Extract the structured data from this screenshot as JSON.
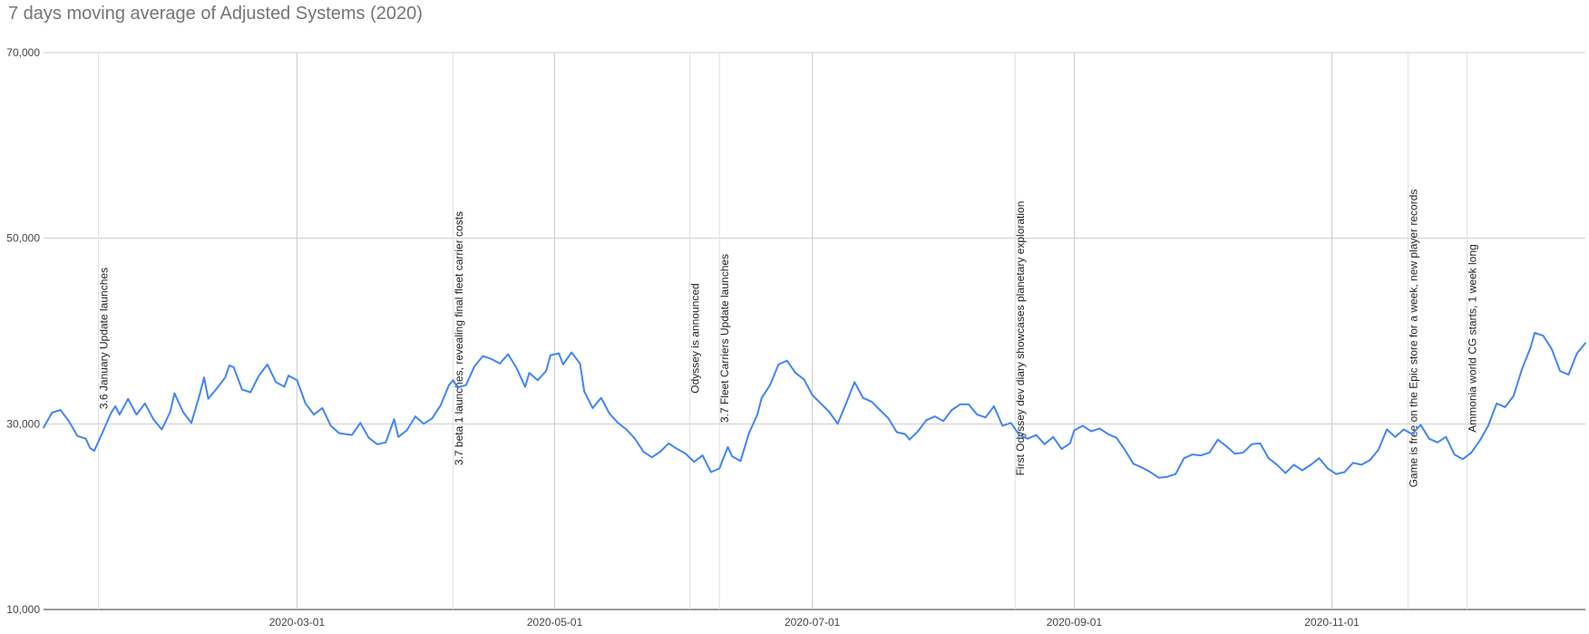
{
  "chart_data": {
    "type": "line",
    "title": "7 days moving average of Adjusted Systems (2020)",
    "xlabel": "",
    "ylabel": "",
    "x_range": [
      "2020-01-01",
      "2020-12-31"
    ],
    "ylim": [
      10000,
      70000
    ],
    "y_ticks": [
      {
        "value": 10000,
        "label": "10,000"
      },
      {
        "value": 30000,
        "label": "30,000"
      },
      {
        "value": 50000,
        "label": "50,000"
      },
      {
        "value": 70000,
        "label": "70,000"
      }
    ],
    "x_ticks": [
      {
        "date": "2020-03-01",
        "label": "2020-03-01"
      },
      {
        "date": "2020-05-01",
        "label": "2020-05-01"
      },
      {
        "date": "2020-07-01",
        "label": "2020-07-01"
      },
      {
        "date": "2020-09-01",
        "label": "2020-09-01"
      },
      {
        "date": "2020-11-01",
        "label": "2020-11-01"
      }
    ],
    "grid": true,
    "line_color": "#4285f4",
    "annotations": [
      {
        "date": "2020-01-14",
        "text": "3.6 January Update launches"
      },
      {
        "date": "2020-04-07",
        "text": "3.7 beta 1 launches, revealing final fleet carrier costs"
      },
      {
        "date": "2020-06-02",
        "text": "Odyssey is announced"
      },
      {
        "date": "2020-06-09",
        "text": "3.7 Fleet Carriers Update launches"
      },
      {
        "date": "2020-08-18",
        "text": "First Odyssey dev diary showcases planetary exploration"
      },
      {
        "date": "2020-11-19",
        "text": "Game is free on the Epic store for a week, new player records"
      },
      {
        "date": "2020-12-03",
        "text": "Ammonia world CG starts, 1 week long"
      }
    ],
    "series": [
      {
        "values": [
          [
            "2020-01-01",
            29600
          ],
          [
            "2020-01-03",
            31200
          ],
          [
            "2020-01-05",
            31500
          ],
          [
            "2020-01-07",
            30300
          ],
          [
            "2020-01-09",
            28700
          ],
          [
            "2020-01-11",
            28400
          ],
          [
            "2020-01-12",
            27400
          ],
          [
            "2020-01-13",
            27100
          ],
          [
            "2020-01-15",
            29100
          ],
          [
            "2020-01-17",
            31200
          ],
          [
            "2020-01-18",
            31900
          ],
          [
            "2020-01-19",
            31000
          ],
          [
            "2020-01-21",
            32700
          ],
          [
            "2020-01-23",
            31000
          ],
          [
            "2020-01-25",
            32200
          ],
          [
            "2020-01-27",
            30500
          ],
          [
            "2020-01-29",
            29400
          ],
          [
            "2020-01-31",
            31300
          ],
          [
            "2020-02-01",
            33300
          ],
          [
            "2020-02-03",
            31300
          ],
          [
            "2020-02-05",
            30100
          ],
          [
            "2020-02-07",
            33200
          ],
          [
            "2020-02-08",
            35000
          ],
          [
            "2020-02-09",
            32700
          ],
          [
            "2020-02-11",
            33800
          ],
          [
            "2020-02-13",
            35000
          ],
          [
            "2020-02-14",
            36300
          ],
          [
            "2020-02-15",
            36100
          ],
          [
            "2020-02-17",
            33700
          ],
          [
            "2020-02-19",
            33400
          ],
          [
            "2020-02-21",
            35200
          ],
          [
            "2020-02-23",
            36400
          ],
          [
            "2020-02-25",
            34500
          ],
          [
            "2020-02-27",
            34000
          ],
          [
            "2020-02-28",
            35200
          ],
          [
            "2020-03-01",
            34700
          ],
          [
            "2020-03-03",
            32200
          ],
          [
            "2020-03-05",
            31000
          ],
          [
            "2020-03-07",
            31700
          ],
          [
            "2020-03-09",
            29800
          ],
          [
            "2020-03-11",
            29000
          ],
          [
            "2020-03-14",
            28800
          ],
          [
            "2020-03-16",
            30100
          ],
          [
            "2020-03-18",
            28500
          ],
          [
            "2020-03-20",
            27800
          ],
          [
            "2020-03-22",
            28000
          ],
          [
            "2020-03-24",
            30500
          ],
          [
            "2020-03-25",
            28600
          ],
          [
            "2020-03-27",
            29300
          ],
          [
            "2020-03-29",
            30800
          ],
          [
            "2020-03-31",
            30000
          ],
          [
            "2020-04-02",
            30600
          ],
          [
            "2020-04-04",
            32000
          ],
          [
            "2020-04-06",
            34200
          ],
          [
            "2020-04-07",
            34700
          ],
          [
            "2020-04-08",
            33900
          ],
          [
            "2020-04-10",
            34200
          ],
          [
            "2020-04-12",
            36200
          ],
          [
            "2020-04-14",
            37300
          ],
          [
            "2020-04-16",
            37000
          ],
          [
            "2020-04-18",
            36500
          ],
          [
            "2020-04-20",
            37500
          ],
          [
            "2020-04-22",
            36000
          ],
          [
            "2020-04-24",
            34000
          ],
          [
            "2020-04-25",
            35500
          ],
          [
            "2020-04-27",
            34700
          ],
          [
            "2020-04-29",
            35700
          ],
          [
            "2020-04-30",
            37400
          ],
          [
            "2020-05-02",
            37600
          ],
          [
            "2020-05-03",
            36400
          ],
          [
            "2020-05-05",
            37700
          ],
          [
            "2020-05-07",
            36500
          ],
          [
            "2020-05-08",
            33500
          ],
          [
            "2020-05-10",
            31700
          ],
          [
            "2020-05-12",
            32800
          ],
          [
            "2020-05-14",
            31100
          ],
          [
            "2020-05-16",
            30100
          ],
          [
            "2020-05-18",
            29400
          ],
          [
            "2020-05-20",
            28400
          ],
          [
            "2020-05-22",
            27000
          ],
          [
            "2020-05-24",
            26400
          ],
          [
            "2020-05-26",
            27000
          ],
          [
            "2020-05-28",
            27900
          ],
          [
            "2020-05-30",
            27300
          ],
          [
            "2020-06-01",
            26800
          ],
          [
            "2020-06-03",
            25900
          ],
          [
            "2020-06-05",
            26600
          ],
          [
            "2020-06-07",
            24800
          ],
          [
            "2020-06-09",
            25200
          ],
          [
            "2020-06-11",
            27500
          ],
          [
            "2020-06-12",
            26500
          ],
          [
            "2020-06-14",
            26000
          ],
          [
            "2020-06-16",
            29000
          ],
          [
            "2020-06-18",
            31000
          ],
          [
            "2020-06-19",
            32800
          ],
          [
            "2020-06-21",
            34200
          ],
          [
            "2020-06-23",
            36400
          ],
          [
            "2020-06-25",
            36800
          ],
          [
            "2020-06-27",
            35500
          ],
          [
            "2020-06-29",
            34800
          ],
          [
            "2020-07-01",
            33100
          ],
          [
            "2020-07-03",
            32200
          ],
          [
            "2020-07-05",
            31300
          ],
          [
            "2020-07-07",
            30000
          ],
          [
            "2020-07-09",
            32200
          ],
          [
            "2020-07-11",
            34500
          ],
          [
            "2020-07-13",
            32800
          ],
          [
            "2020-07-15",
            32400
          ],
          [
            "2020-07-17",
            31500
          ],
          [
            "2020-07-19",
            30600
          ],
          [
            "2020-07-21",
            29100
          ],
          [
            "2020-07-23",
            28900
          ],
          [
            "2020-07-24",
            28300
          ],
          [
            "2020-07-26",
            29200
          ],
          [
            "2020-07-28",
            30400
          ],
          [
            "2020-07-30",
            30800
          ],
          [
            "2020-08-01",
            30300
          ],
          [
            "2020-08-03",
            31500
          ],
          [
            "2020-08-05",
            32100
          ],
          [
            "2020-08-07",
            32100
          ],
          [
            "2020-08-09",
            31000
          ],
          [
            "2020-08-11",
            30700
          ],
          [
            "2020-08-13",
            31900
          ],
          [
            "2020-08-15",
            29800
          ],
          [
            "2020-08-17",
            30100
          ],
          [
            "2020-08-19",
            28800
          ],
          [
            "2020-08-21",
            28400
          ],
          [
            "2020-08-23",
            28800
          ],
          [
            "2020-08-25",
            27800
          ],
          [
            "2020-08-27",
            28600
          ],
          [
            "2020-08-29",
            27300
          ],
          [
            "2020-08-31",
            27900
          ],
          [
            "2020-09-01",
            29300
          ],
          [
            "2020-09-03",
            29800
          ],
          [
            "2020-09-05",
            29200
          ],
          [
            "2020-09-07",
            29500
          ],
          [
            "2020-09-09",
            28900
          ],
          [
            "2020-09-11",
            28500
          ],
          [
            "2020-09-13",
            27200
          ],
          [
            "2020-09-15",
            25700
          ],
          [
            "2020-09-17",
            25300
          ],
          [
            "2020-09-19",
            24800
          ],
          [
            "2020-09-21",
            24200
          ],
          [
            "2020-09-23",
            24300
          ],
          [
            "2020-09-25",
            24600
          ],
          [
            "2020-09-27",
            26300
          ],
          [
            "2020-09-29",
            26700
          ],
          [
            "2020-10-01",
            26600
          ],
          [
            "2020-10-03",
            26900
          ],
          [
            "2020-10-05",
            28300
          ],
          [
            "2020-10-07",
            27600
          ],
          [
            "2020-10-09",
            26800
          ],
          [
            "2020-10-11",
            26900
          ],
          [
            "2020-10-13",
            27800
          ],
          [
            "2020-10-15",
            27900
          ],
          [
            "2020-10-17",
            26300
          ],
          [
            "2020-10-19",
            25600
          ],
          [
            "2020-10-21",
            24700
          ],
          [
            "2020-10-23",
            25600
          ],
          [
            "2020-10-25",
            25000
          ],
          [
            "2020-10-27",
            25600
          ],
          [
            "2020-10-29",
            26300
          ],
          [
            "2020-10-31",
            25200
          ],
          [
            "2020-11-02",
            24600
          ],
          [
            "2020-11-04",
            24800
          ],
          [
            "2020-11-06",
            25800
          ],
          [
            "2020-11-08",
            25600
          ],
          [
            "2020-11-10",
            26100
          ],
          [
            "2020-11-12",
            27200
          ],
          [
            "2020-11-14",
            29400
          ],
          [
            "2020-11-16",
            28600
          ],
          [
            "2020-11-18",
            29400
          ],
          [
            "2020-11-20",
            28900
          ],
          [
            "2020-11-22",
            29900
          ],
          [
            "2020-11-24",
            28400
          ],
          [
            "2020-11-26",
            28000
          ],
          [
            "2020-11-28",
            28600
          ],
          [
            "2020-11-30",
            26700
          ],
          [
            "2020-12-02",
            26200
          ],
          [
            "2020-12-04",
            26900
          ],
          [
            "2020-12-06",
            28200
          ],
          [
            "2020-12-08",
            29800
          ],
          [
            "2020-12-10",
            32200
          ],
          [
            "2020-12-12",
            31800
          ],
          [
            "2020-12-14",
            33000
          ],
          [
            "2020-12-16",
            35900
          ],
          [
            "2020-12-18",
            38200
          ],
          [
            "2020-12-19",
            39800
          ],
          [
            "2020-12-21",
            39500
          ],
          [
            "2020-12-23",
            38100
          ],
          [
            "2020-12-25",
            35700
          ],
          [
            "2020-12-27",
            35300
          ],
          [
            "2020-12-29",
            37600
          ],
          [
            "2020-12-31",
            38700
          ]
        ]
      }
    ]
  }
}
